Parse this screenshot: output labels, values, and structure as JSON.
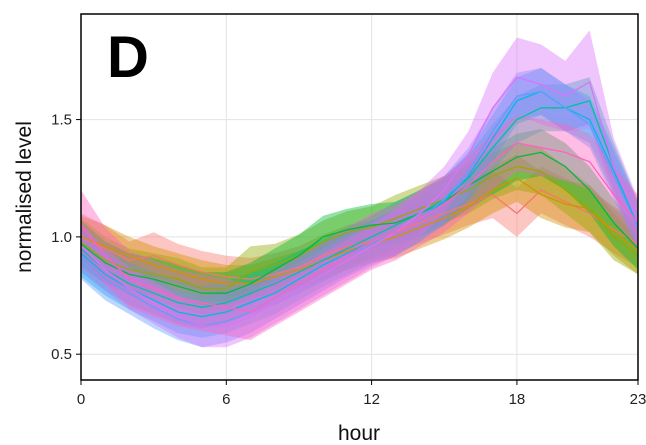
{
  "chart_data": {
    "type": "area",
    "panel_label": "D",
    "title": "",
    "xlabel": "hour",
    "ylabel": "normalised level",
    "xlim": [
      0,
      23
    ],
    "ylim": [
      0.39,
      1.95
    ],
    "xticks": [
      0,
      6,
      12,
      18,
      23
    ],
    "yticks": [
      0.5,
      1.0,
      1.5
    ],
    "ytick_labels": [
      "0.5",
      "1.0",
      "1.5"
    ],
    "grid": true,
    "legend": "none",
    "x": [
      0,
      1,
      2,
      3,
      4,
      5,
      6,
      7,
      8,
      9,
      10,
      11,
      12,
      13,
      14,
      15,
      16,
      17,
      18,
      19,
      20,
      21,
      22,
      23
    ],
    "series": [
      {
        "color": "#F8766D",
        "mean": [
          1.0,
          0.95,
          0.9,
          0.92,
          0.88,
          0.85,
          0.83,
          0.82,
          0.84,
          0.87,
          0.92,
          0.96,
          0.98,
          1.02,
          1.06,
          1.1,
          1.14,
          1.18,
          1.1,
          1.2,
          1.15,
          1.1,
          1.03,
          0.97
        ],
        "lower": [
          0.9,
          0.86,
          0.82,
          0.83,
          0.8,
          0.77,
          0.75,
          0.74,
          0.76,
          0.79,
          0.84,
          0.88,
          0.9,
          0.93,
          0.97,
          1.01,
          1.05,
          1.08,
          1.0,
          1.1,
          1.05,
          1.0,
          0.93,
          0.87
        ],
        "upper": [
          1.1,
          1.05,
          0.98,
          1.02,
          0.97,
          0.94,
          0.92,
          0.91,
          0.93,
          0.96,
          1.01,
          1.05,
          1.07,
          1.11,
          1.15,
          1.2,
          1.24,
          1.28,
          1.21,
          1.3,
          1.25,
          1.2,
          1.13,
          1.07
        ]
      },
      {
        "color": "#D39200",
        "mean": [
          1.0,
          0.96,
          0.92,
          0.88,
          0.85,
          0.82,
          0.8,
          0.8,
          0.83,
          0.86,
          0.9,
          0.94,
          0.97,
          1.0,
          1.04,
          1.08,
          1.13,
          1.2,
          1.25,
          1.18,
          1.14,
          1.12,
          1.02,
          0.94
        ],
        "lower": [
          0.91,
          0.87,
          0.84,
          0.8,
          0.77,
          0.74,
          0.72,
          0.72,
          0.75,
          0.78,
          0.82,
          0.86,
          0.89,
          0.91,
          0.95,
          0.99,
          1.04,
          1.1,
          1.15,
          1.08,
          1.04,
          1.02,
          0.92,
          0.84
        ],
        "upper": [
          1.09,
          1.05,
          1.0,
          0.96,
          0.93,
          0.9,
          0.88,
          0.88,
          0.91,
          0.94,
          0.98,
          1.02,
          1.05,
          1.09,
          1.13,
          1.17,
          1.22,
          1.3,
          1.35,
          1.28,
          1.24,
          1.22,
          1.12,
          1.04
        ]
      },
      {
        "color": "#93AA00",
        "mean": [
          0.98,
          0.9,
          0.86,
          0.84,
          0.82,
          0.78,
          0.78,
          0.85,
          0.88,
          0.92,
          0.98,
          1.02,
          1.04,
          1.08,
          1.12,
          1.16,
          1.2,
          1.26,
          1.3,
          1.28,
          1.2,
          1.12,
          1.0,
          0.92
        ],
        "lower": [
          0.88,
          0.8,
          0.77,
          0.75,
          0.73,
          0.69,
          0.69,
          0.74,
          0.79,
          0.83,
          0.89,
          0.93,
          0.95,
          0.98,
          1.02,
          1.06,
          1.1,
          1.16,
          1.2,
          1.18,
          1.1,
          1.02,
          0.9,
          0.84
        ],
        "upper": [
          1.08,
          1.0,
          0.95,
          0.93,
          0.91,
          0.87,
          0.87,
          0.96,
          0.97,
          1.01,
          1.07,
          1.11,
          1.13,
          1.18,
          1.22,
          1.26,
          1.3,
          1.36,
          1.4,
          1.38,
          1.3,
          1.22,
          1.1,
          1.0
        ]
      },
      {
        "color": "#00BA38",
        "mean": [
          0.97,
          0.89,
          0.84,
          0.82,
          0.79,
          0.76,
          0.76,
          0.8,
          0.86,
          0.92,
          1.0,
          1.03,
          1.05,
          1.06,
          1.1,
          1.15,
          1.22,
          1.28,
          1.34,
          1.36,
          1.3,
          1.2,
          1.06,
          0.95
        ],
        "lower": [
          0.87,
          0.8,
          0.75,
          0.73,
          0.7,
          0.67,
          0.67,
          0.71,
          0.77,
          0.83,
          0.91,
          0.94,
          0.96,
          0.97,
          1.0,
          1.05,
          1.12,
          1.18,
          1.24,
          1.26,
          1.2,
          1.1,
          0.96,
          0.86
        ],
        "upper": [
          1.07,
          0.98,
          0.93,
          0.91,
          0.88,
          0.85,
          0.85,
          0.89,
          0.95,
          1.01,
          1.09,
          1.12,
          1.14,
          1.15,
          1.2,
          1.25,
          1.32,
          1.38,
          1.44,
          1.46,
          1.4,
          1.3,
          1.16,
          1.04
        ]
      },
      {
        "color": "#00C19F",
        "mean": [
          0.95,
          0.86,
          0.8,
          0.76,
          0.72,
          0.7,
          0.72,
          0.76,
          0.8,
          0.85,
          0.9,
          0.95,
          1.0,
          1.05,
          1.1,
          1.16,
          1.25,
          1.38,
          1.5,
          1.55,
          1.55,
          1.58,
          1.3,
          1.05
        ],
        "lower": [
          0.85,
          0.77,
          0.71,
          0.67,
          0.63,
          0.61,
          0.63,
          0.67,
          0.71,
          0.76,
          0.81,
          0.86,
          0.91,
          0.95,
          1.0,
          1.06,
          1.15,
          1.28,
          1.4,
          1.45,
          1.45,
          1.48,
          1.2,
          0.95
        ],
        "upper": [
          1.05,
          0.95,
          0.89,
          0.85,
          0.81,
          0.79,
          0.81,
          0.85,
          0.89,
          0.94,
          0.99,
          1.04,
          1.09,
          1.15,
          1.2,
          1.26,
          1.35,
          1.48,
          1.6,
          1.65,
          1.65,
          1.68,
          1.4,
          1.15
        ]
      },
      {
        "color": "#00B9E3",
        "mean": [
          0.93,
          0.84,
          0.78,
          0.73,
          0.68,
          0.66,
          0.68,
          0.72,
          0.76,
          0.82,
          0.88,
          0.93,
          0.98,
          1.02,
          1.08,
          1.15,
          1.26,
          1.42,
          1.58,
          1.62,
          1.55,
          1.5,
          1.28,
          1.05
        ],
        "lower": [
          0.83,
          0.75,
          0.69,
          0.64,
          0.59,
          0.57,
          0.59,
          0.63,
          0.67,
          0.73,
          0.79,
          0.84,
          0.89,
          0.92,
          0.98,
          1.05,
          1.16,
          1.32,
          1.48,
          1.52,
          1.45,
          1.4,
          1.18,
          0.95
        ],
        "upper": [
          1.03,
          0.93,
          0.87,
          0.82,
          0.77,
          0.75,
          0.77,
          0.81,
          0.85,
          0.91,
          0.97,
          1.02,
          1.07,
          1.12,
          1.18,
          1.25,
          1.36,
          1.52,
          1.68,
          1.72,
          1.65,
          1.6,
          1.38,
          1.15
        ]
      },
      {
        "color": "#619CFF",
        "mean": [
          0.92,
          0.82,
          0.76,
          0.7,
          0.65,
          0.62,
          0.64,
          0.68,
          0.74,
          0.8,
          0.86,
          0.92,
          0.97,
          1.02,
          1.08,
          1.16,
          1.28,
          1.45,
          1.6,
          1.62,
          1.55,
          1.48,
          1.26,
          1.04
        ],
        "lower": [
          0.82,
          0.73,
          0.67,
          0.61,
          0.56,
          0.53,
          0.55,
          0.59,
          0.65,
          0.71,
          0.77,
          0.83,
          0.88,
          0.92,
          0.98,
          1.06,
          1.18,
          1.35,
          1.5,
          1.52,
          1.45,
          1.38,
          1.16,
          0.94
        ],
        "upper": [
          1.02,
          0.91,
          0.85,
          0.79,
          0.74,
          0.71,
          0.73,
          0.77,
          0.83,
          0.89,
          0.95,
          1.01,
          1.06,
          1.12,
          1.18,
          1.26,
          1.38,
          1.55,
          1.7,
          1.72,
          1.65,
          1.58,
          1.36,
          1.14
        ]
      },
      {
        "color": "#DB72FB",
        "mean": [
          0.96,
          0.86,
          0.78,
          0.72,
          0.66,
          0.62,
          0.62,
          0.66,
          0.72,
          0.78,
          0.84,
          0.9,
          0.96,
          1.02,
          1.1,
          1.2,
          1.35,
          1.55,
          1.68,
          1.65,
          1.6,
          1.66,
          1.3,
          1.06
        ],
        "lower": [
          0.86,
          0.77,
          0.69,
          0.63,
          0.57,
          0.53,
          0.53,
          0.57,
          0.63,
          0.69,
          0.75,
          0.81,
          0.87,
          0.92,
          1.0,
          1.1,
          1.25,
          1.4,
          1.52,
          1.48,
          1.45,
          1.46,
          1.18,
          0.96
        ],
        "upper": [
          1.06,
          0.95,
          0.87,
          0.81,
          0.75,
          0.71,
          0.71,
          0.75,
          0.81,
          0.87,
          0.93,
          0.99,
          1.05,
          1.12,
          1.2,
          1.3,
          1.45,
          1.7,
          1.85,
          1.82,
          1.75,
          1.88,
          1.42,
          1.16
        ]
      },
      {
        "color": "#FF61C3",
        "mean": [
          1.05,
          0.92,
          0.82,
          0.78,
          0.74,
          0.72,
          0.7,
          0.68,
          0.74,
          0.8,
          0.86,
          0.92,
          0.98,
          1.02,
          1.08,
          1.14,
          1.22,
          1.32,
          1.4,
          1.38,
          1.36,
          1.32,
          1.18,
          1.06
        ],
        "lower": [
          0.92,
          0.8,
          0.7,
          0.66,
          0.62,
          0.6,
          0.58,
          0.56,
          0.62,
          0.68,
          0.74,
          0.8,
          0.86,
          0.9,
          0.96,
          1.02,
          1.1,
          1.2,
          1.28,
          1.26,
          1.24,
          1.2,
          1.06,
          0.94
        ],
        "upper": [
          1.2,
          1.04,
          0.94,
          0.9,
          0.86,
          0.84,
          0.82,
          0.8,
          0.86,
          0.92,
          0.98,
          1.04,
          1.1,
          1.14,
          1.2,
          1.26,
          1.34,
          1.44,
          1.52,
          1.5,
          1.48,
          1.44,
          1.3,
          1.18
        ]
      }
    ]
  }
}
